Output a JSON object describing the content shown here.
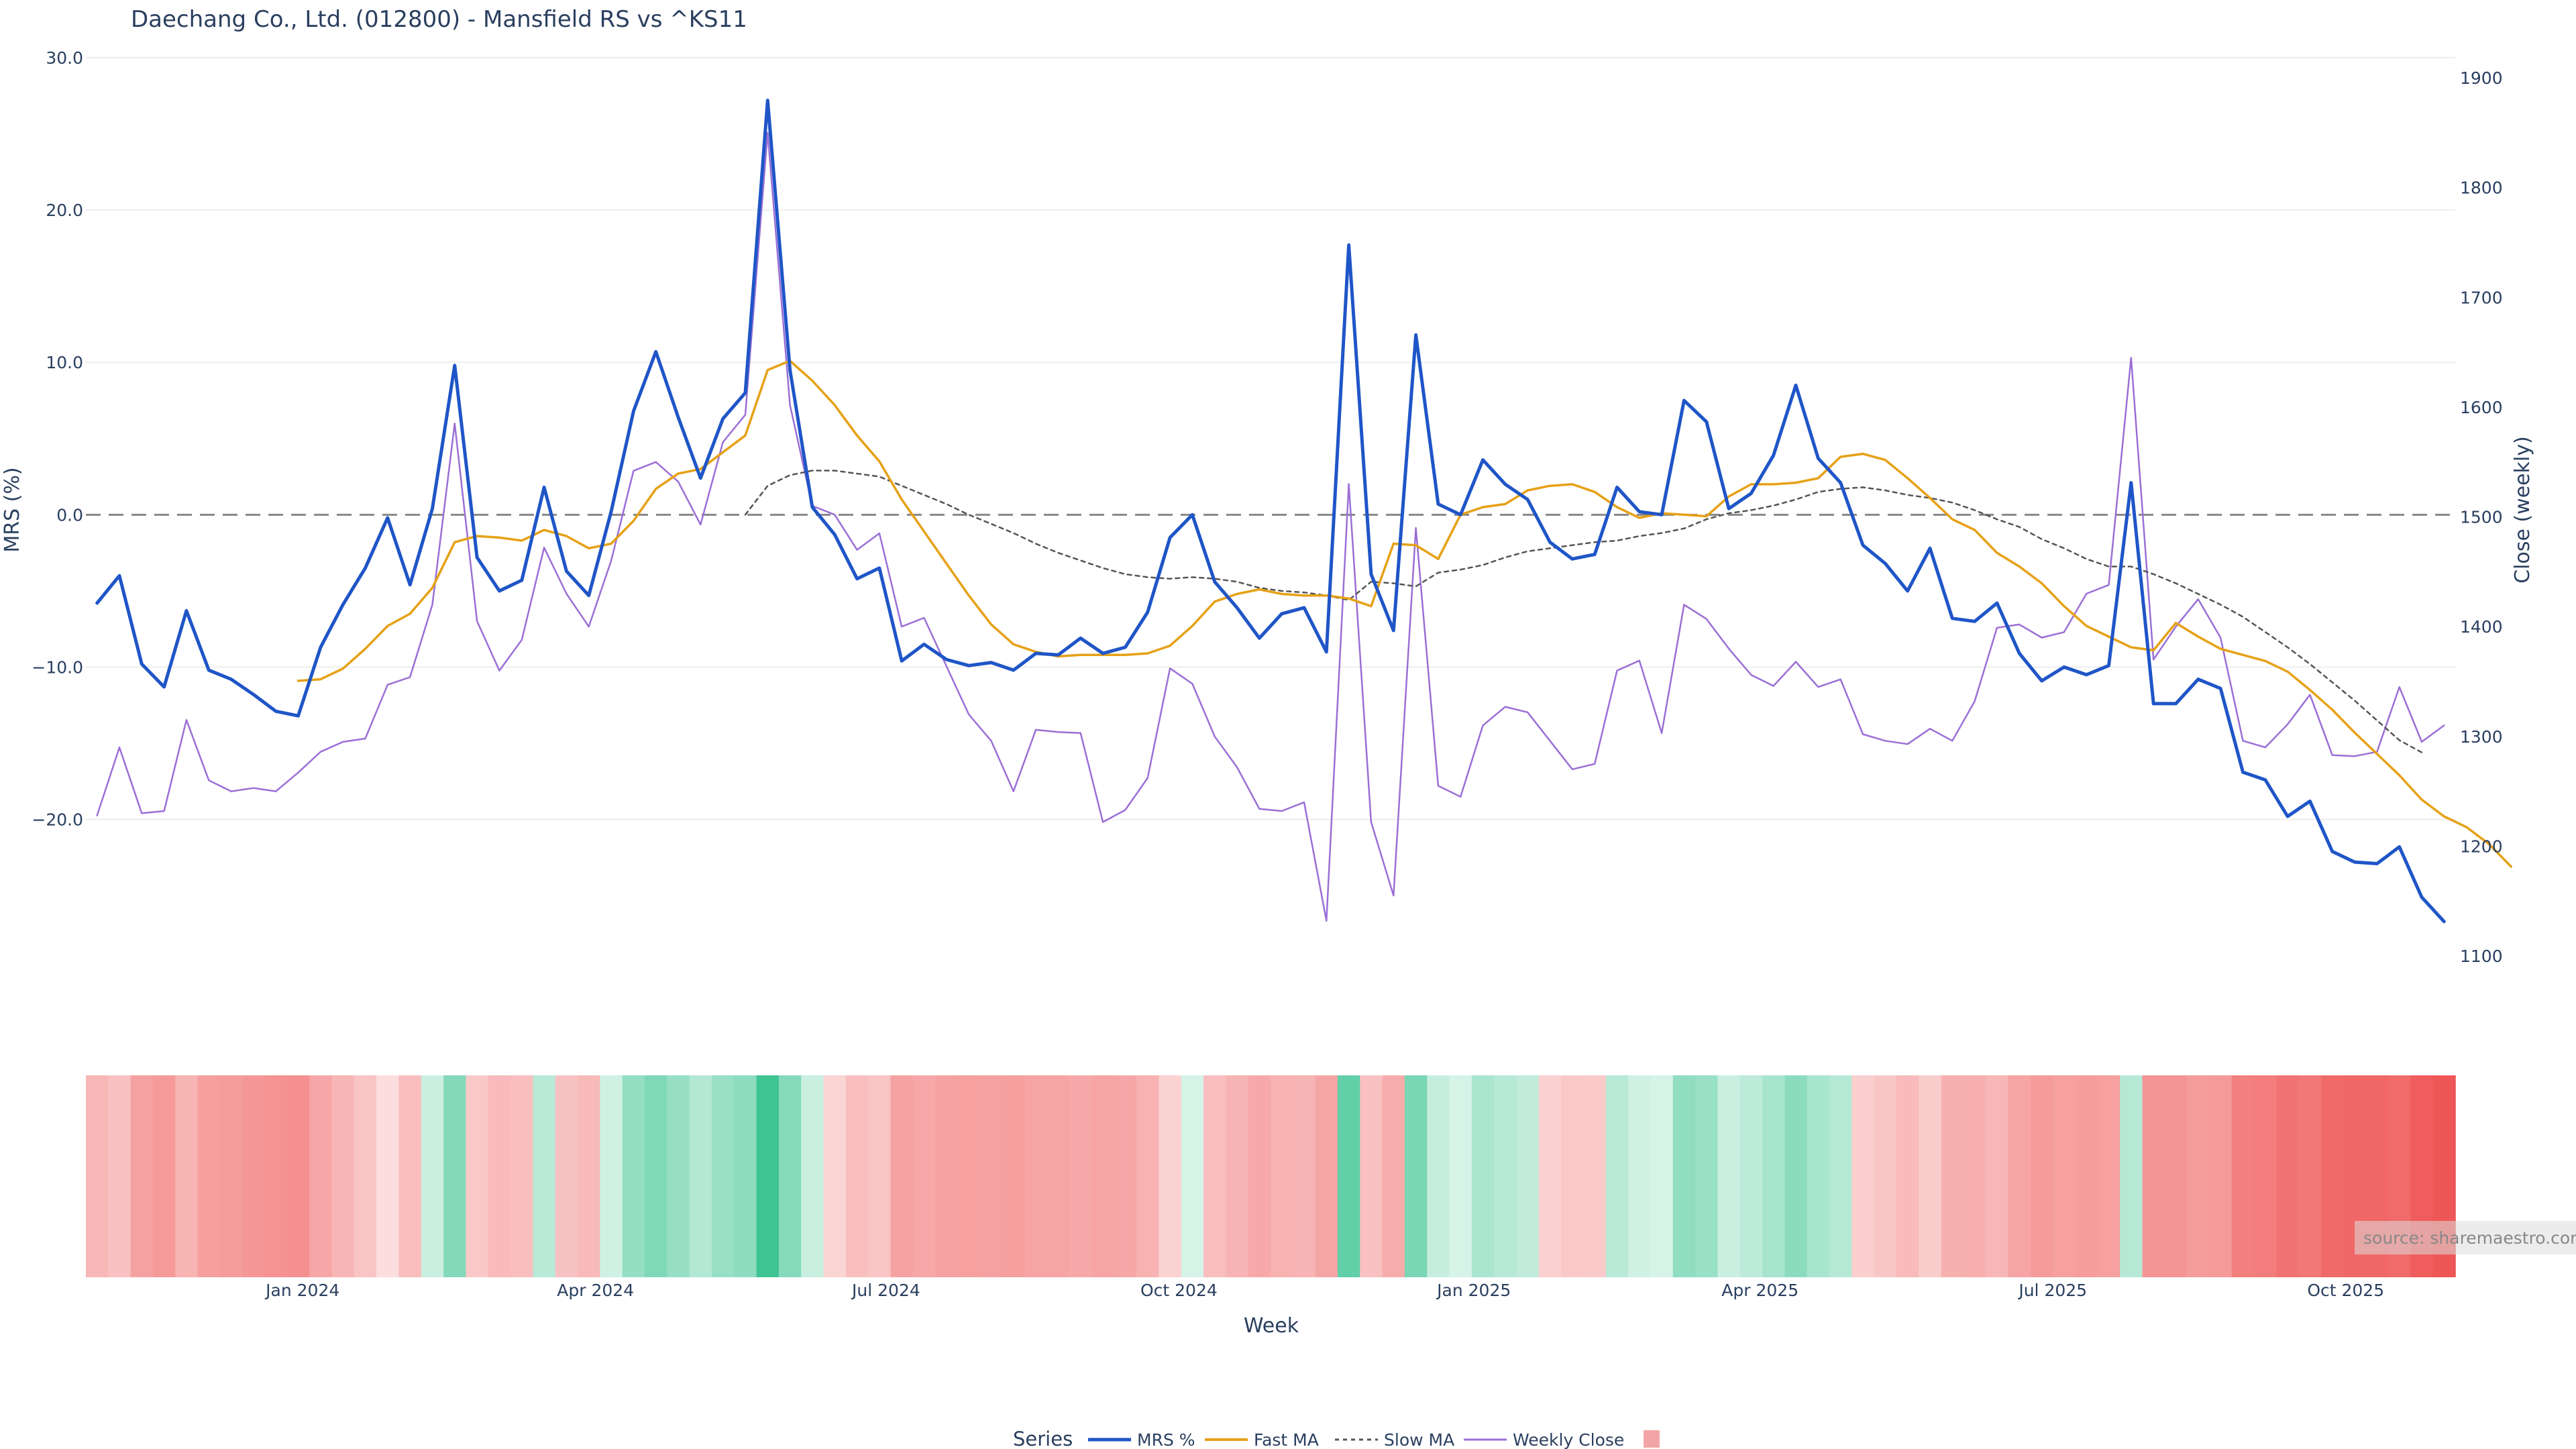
{
  "chart_data": {
    "type": "line",
    "title": "Daechang Co., Ltd. (012800) - Mansfield RS vs ^KS11",
    "xlabel": "Week",
    "ylabel": "MRS (%)",
    "y2label": "Close (weekly)",
    "ylim": [
      -30.5,
      30.0
    ],
    "y2lim": [
      1000,
      1900
    ],
    "y_ticks": [
      30.0,
      20.0,
      10.0,
      0.0,
      -10.0,
      -20.0
    ],
    "y_tick_labels": [
      "30.0",
      "20.0",
      "10.0",
      "0.0",
      "−10.0",
      "−20.0"
    ],
    "y2_ticks": [
      1900,
      1800,
      1700,
      1600,
      1500,
      1400,
      1300,
      1200,
      1100
    ],
    "y2_tick_labels": [
      "1900",
      "1800",
      "1700",
      "1600",
      "1500",
      "1400",
      "1300",
      "1200",
      "1100"
    ],
    "x_range_weeks": [
      0,
      106
    ],
    "x_tick_weeks": [
      9.7,
      22.8,
      35.8,
      48.9,
      62.1,
      74.9,
      88.0,
      101.1
    ],
    "x_tick_labels": [
      "Jan 2024",
      "Apr 2024",
      "Jul 2024",
      "Oct 2024",
      "Jan 2025",
      "Apr 2025",
      "Jul 2025",
      "Oct 2025"
    ],
    "zero_line": 0,
    "series": [
      {
        "name": "MRS %",
        "color": "#1f55c7",
        "axis": "left",
        "values": [
          -5.8,
          -4.0,
          -9.8,
          -11.3,
          -6.3,
          -10.2,
          -10.8,
          -11.8,
          -12.9,
          -13.2,
          -8.7,
          -5.9,
          -3.5,
          -0.2,
          -4.6,
          0.4,
          9.8,
          -2.8,
          -5.0,
          -4.3,
          1.8,
          -3.7,
          -5.3,
          0.2,
          6.8,
          10.7,
          6.4,
          2.4,
          6.3,
          8.0,
          27.2,
          9.5,
          0.5,
          -1.3,
          -4.2,
          -3.5,
          -9.6,
          -8.5,
          -9.5,
          -9.9,
          -9.7,
          -10.2,
          -9.1,
          -9.2,
          -8.1,
          -9.1,
          -8.7,
          -6.4,
          -1.5,
          0.0,
          -4.4,
          -6.1,
          -8.1,
          -6.5,
          -6.1,
          -9.0,
          17.7,
          -3.9,
          -7.6,
          11.8,
          0.7,
          0.0,
          3.6,
          2.0,
          1.0,
          -1.8,
          -2.9,
          -2.6,
          1.8,
          0.2,
          0.0,
          7.5,
          6.1,
          0.4,
          1.4,
          3.9,
          8.5,
          3.7,
          2.1,
          -2.0,
          -3.2,
          -5.0,
          -2.2,
          -6.8,
          -7.0,
          -5.8,
          -9.1,
          -10.9,
          -10.0,
          -10.5,
          -9.9,
          2.1,
          -12.4,
          -12.4,
          -10.8,
          -11.4,
          -16.9,
          -17.4,
          -19.8,
          -18.8,
          -22.1,
          -22.8,
          -22.9,
          -21.8,
          -25.1,
          -26.7
        ]
      },
      {
        "name": "Fast MA",
        "color": "#e6a117",
        "axis": "left",
        "start_week": 9,
        "values": [
          -10.9,
          -10.8,
          -10.1,
          -8.8,
          -7.3,
          -6.5,
          -4.8,
          -1.8,
          -1.4,
          -1.5,
          -1.7,
          -1.0,
          -1.4,
          -2.2,
          -1.9,
          -0.4,
          1.7,
          2.7,
          3.0,
          4.1,
          5.2,
          9.5,
          10.1,
          8.8,
          7.2,
          5.2,
          3.5,
          1.0,
          -1.1,
          -3.2,
          -5.3,
          -7.2,
          -8.5,
          -9.0,
          -9.3,
          -9.2,
          -9.2,
          -9.2,
          -9.1,
          -8.6,
          -7.3,
          -5.7,
          -5.2,
          -4.9,
          -5.2,
          -5.3,
          -5.3,
          -5.5,
          -6.0,
          -1.9,
          -2.0,
          -2.9,
          0.0,
          0.5,
          0.7,
          1.6,
          1.9,
          2.0,
          1.5,
          0.5,
          -0.2,
          0.1,
          0.0,
          -0.1,
          1.2,
          2.0,
          2.0,
          2.1,
          2.4,
          3.8,
          4.0,
          3.6,
          2.4,
          1.1,
          -0.3,
          -1.0,
          -2.5,
          -3.4,
          -4.5,
          -6.0,
          -7.3,
          -8.0,
          -8.7,
          -8.9,
          -7.1,
          -8.0,
          -8.8,
          -9.2,
          -9.6,
          -10.3,
          -11.5,
          -12.8,
          -14.3,
          -15.7,
          -17.1,
          -18.7,
          -19.8,
          -20.5,
          -21.6,
          -23.1
        ]
      },
      {
        "name": "Slow MA",
        "color": "#555555",
        "dash": true,
        "axis": "left",
        "start_week": 29,
        "values": [
          0.0,
          1.9,
          2.6,
          2.9,
          2.9,
          2.7,
          2.5,
          1.9,
          1.3,
          0.7,
          0.0,
          -0.6,
          -1.2,
          -1.9,
          -2.5,
          -3.0,
          -3.5,
          -3.9,
          -4.1,
          -4.2,
          -4.1,
          -4.2,
          -4.4,
          -4.8,
          -5.0,
          -5.1,
          -5.3,
          -5.6,
          -4.4,
          -4.5,
          -4.7,
          -3.8,
          -3.6,
          -3.3,
          -2.8,
          -2.4,
          -2.2,
          -2.0,
          -1.8,
          -1.7,
          -1.4,
          -1.2,
          -0.9,
          -0.3,
          0.1,
          0.3,
          0.6,
          1.0,
          1.5,
          1.7,
          1.8,
          1.6,
          1.3,
          1.1,
          0.8,
          0.3,
          -0.3,
          -0.8,
          -1.6,
          -2.2,
          -2.9,
          -3.4,
          -3.4,
          -3.9,
          -4.5,
          -5.2,
          -5.9,
          -6.7,
          -7.7,
          -8.7,
          -9.8,
          -11.0,
          -12.2,
          -13.5,
          -14.8,
          -15.6
        ]
      },
      {
        "name": "Weekly Close",
        "color": "#9b6fd6",
        "axis": "right",
        "values": [
          1228,
          1290,
          1230,
          1232,
          1315,
          1260,
          1250,
          1253,
          1250,
          1267,
          1286,
          1295,
          1298,
          1347,
          1354,
          1420,
          1585,
          1405,
          1360,
          1388,
          1472,
          1430,
          1400,
          1460,
          1542,
          1550,
          1532,
          1493,
          1568,
          1593,
          1850,
          1602,
          1510,
          1502,
          1470,
          1485,
          1400,
          1408,
          1364,
          1320,
          1296,
          1250,
          1306,
          1304,
          1303,
          1222,
          1233,
          1262,
          1362,
          1348,
          1300,
          1272,
          1234,
          1232,
          1240,
          1132,
          1530,
          1222,
          1155,
          1490,
          1255,
          1245,
          1310,
          1327,
          1322,
          1296,
          1270,
          1275,
          1360,
          1369,
          1303,
          1420,
          1407,
          1380,
          1356,
          1346,
          1368,
          1345,
          1352,
          1302,
          1296,
          1293,
          1307,
          1296,
          1332,
          1399,
          1402,
          1390,
          1395,
          1430,
          1438,
          1645,
          1370,
          1400,
          1425,
          1390,
          1296,
          1290,
          1311,
          1338,
          1283,
          1282,
          1286,
          1345,
          1295,
          1310
        ]
      }
    ],
    "heatmap": {
      "label": "MRS strength",
      "values": [
        -5.8,
        -4.0,
        -9.8,
        -11.3,
        -6.3,
        -10.2,
        -10.8,
        -11.8,
        -12.9,
        -13.2,
        -8.7,
        -5.9,
        -3.5,
        -0.2,
        -4.6,
        0.4,
        9.8,
        -2.8,
        -5.0,
        -4.3,
        1.8,
        -3.7,
        -5.3,
        0.2,
        6.8,
        10.7,
        6.4,
        2.4,
        6.3,
        8.0,
        27.2,
        9.5,
        0.5,
        -1.3,
        -4.2,
        -3.5,
        -9.6,
        -8.5,
        -9.5,
        -9.9,
        -9.7,
        -10.2,
        -9.1,
        -9.2,
        -8.1,
        -9.1,
        -8.7,
        -6.4,
        -1.5,
        0.0,
        -4.4,
        -6.1,
        -8.1,
        -6.5,
        -6.1,
        -9.0,
        17.7,
        -3.9,
        -7.6,
        11.8,
        0.7,
        0.0,
        3.6,
        2.0,
        1.0,
        -1.8,
        -2.9,
        -2.6,
        1.8,
        0.2,
        0.0,
        7.5,
        6.1,
        0.4,
        1.4,
        3.9,
        8.5,
        3.7,
        2.1,
        -2.0,
        -3.2,
        -5.0,
        -2.2,
        -6.8,
        -7.0,
        -5.8,
        -9.1,
        -10.9,
        -10.0,
        -10.5,
        -9.9,
        2.1,
        -12.4,
        -12.4,
        -10.8,
        -11.4,
        -16.9,
        -17.4,
        -19.8,
        -18.8,
        -22.1,
        -22.8,
        -22.9,
        -21.8,
        -25.1,
        -26.7
      ]
    },
    "legend": {
      "title": "Series",
      "position": "bottom-center",
      "items": [
        "MRS %",
        "Fast MA",
        "Slow MA",
        "Weekly Close",
        ""
      ]
    },
    "source": "source: sharemaestro.com",
    "colors": {
      "positive": "#3fc494",
      "negative": "#ef5656",
      "zero_line": "#888888",
      "grid": "#eeeeee",
      "text": "#2a3f5f"
    }
  }
}
